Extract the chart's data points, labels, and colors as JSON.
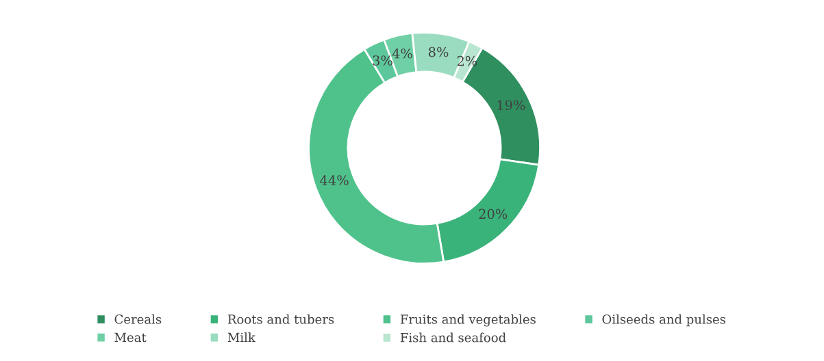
{
  "chart_data": {
    "type": "donut",
    "categories": [
      "Cereals",
      "Roots and tubers",
      "Fruits and vegetables",
      "Oilseeds and pulses",
      "Meat",
      "Milk",
      "Fish and seafood"
    ],
    "values": [
      19,
      20,
      44,
      3,
      4,
      8,
      2
    ],
    "value_labels": [
      "19%",
      "20%",
      "44%",
      "3%",
      "4%",
      "8%",
      "2%"
    ],
    "colors": [
      "#2f8f5f",
      "#3ab37a",
      "#4fc28c",
      "#5cc79a",
      "#6fd0a5",
      "#9adcbf",
      "#b8e6d0"
    ],
    "legend": "bottom"
  }
}
